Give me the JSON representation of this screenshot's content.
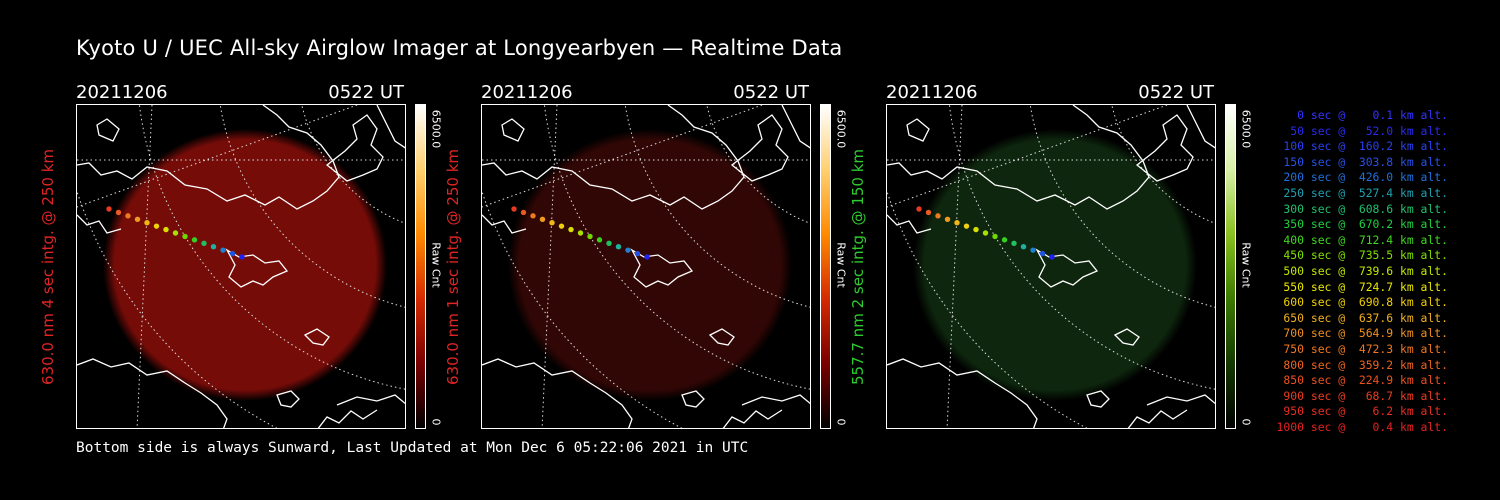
{
  "title": "Kyoto U / UEC All-sky Airglow Imager at Longyearbyen — Realtime Data",
  "footer": "Bottom side is always Sunward, Last Updated at Mon Dec  6 05:22:06 2021 in UTC",
  "panels": [
    {
      "date": "20211206",
      "time": "0522 UT",
      "ylabel": "630.0 nm 4 sec intg. @ 250 km",
      "label_color": "#e02424",
      "cbar_max": "6500.0",
      "cbar_unit": "Raw Cnt",
      "cbar_min": "0",
      "cbar_colors": [
        "#ffffff",
        "#ffd070",
        "#ff8a00",
        "#d42a00",
        "#7a0000",
        "#000000"
      ],
      "glow_color": "#8a0e0a",
      "glow_opacity": 0.85
    },
    {
      "date": "20211206",
      "time": "0522 UT",
      "ylabel": "630.0 nm 1 sec intg. @ 250 km",
      "label_color": "#e02424",
      "cbar_max": "6500.0",
      "cbar_unit": "Raw Cnt",
      "cbar_min": "0",
      "cbar_colors": [
        "#ffffff",
        "#ffd070",
        "#ff8a00",
        "#d42a00",
        "#7a0000",
        "#000000"
      ],
      "glow_color": "#3a0806",
      "glow_opacity": 0.85
    },
    {
      "date": "20211206",
      "time": "0522 UT",
      "ylabel": "557.7 nm 2 sec intg. @ 150 km",
      "label_color": "#2ecc2e",
      "cbar_max": "6500.0",
      "cbar_unit": "Raw Cnt",
      "cbar_min": "0",
      "cbar_colors": [
        "#ffffff",
        "#d8f0a8",
        "#8ac020",
        "#3c7a00",
        "#143a00",
        "#000000"
      ],
      "glow_color": "#0f2a0f",
      "glow_opacity": 0.9
    }
  ],
  "trajectory_colors": [
    "#e63a20",
    "#e85a20",
    "#ec7a20",
    "#ee9a20",
    "#f0b818",
    "#eed010",
    "#d8e000",
    "#a8e000",
    "#70d800",
    "#38d020",
    "#20c060",
    "#20b0a0",
    "#2080d0",
    "#2050e0",
    "#2020f0"
  ],
  "legend": [
    {
      "text": "   0 sec @    0.1 km alt.",
      "color": "#3232ff"
    },
    {
      "text": "  50 sec @   52.0 km alt.",
      "color": "#2a2aee"
    },
    {
      "text": " 100 sec @  160.2 km alt.",
      "color": "#2840ee"
    },
    {
      "text": " 150 sec @  303.8 km alt.",
      "color": "#2850e6"
    },
    {
      "text": " 200 sec @  426.0 km alt.",
      "color": "#2070d8"
    },
    {
      "text": " 250 sec @  527.4 km alt.",
      "color": "#20a0b0"
    },
    {
      "text": " 300 sec @  608.6 km alt.",
      "color": "#20c070"
    },
    {
      "text": " 350 sec @  670.2 km alt.",
      "color": "#20d040"
    },
    {
      "text": " 400 sec @  712.4 km alt.",
      "color": "#40d820"
    },
    {
      "text": " 450 sec @  735.5 km alt.",
      "color": "#80e000"
    },
    {
      "text": " 500 sec @  739.6 km alt.",
      "color": "#c0e800"
    },
    {
      "text": " 550 sec @  724.7 km alt.",
      "color": "#e8e800"
    },
    {
      "text": " 600 sec @  690.8 km alt.",
      "color": "#f0d000"
    },
    {
      "text": " 650 sec @  637.6 km alt.",
      "color": "#f0b020"
    },
    {
      "text": " 700 sec @  564.9 km alt.",
      "color": "#f09020"
    },
    {
      "text": " 750 sec @  472.3 km alt.",
      "color": "#f07820"
    },
    {
      "text": " 800 sec @  359.2 km alt.",
      "color": "#ee6420"
    },
    {
      "text": " 850 sec @  224.9 km alt.",
      "color": "#ec5020"
    },
    {
      "text": " 900 sec @   68.7 km alt.",
      "color": "#ea3c20"
    },
    {
      "text": " 950 sec @    6.2 km alt.",
      "color": "#e82c20"
    },
    {
      "text": "1000 sec @    0.4 km alt.",
      "color": "#e62020"
    }
  ]
}
